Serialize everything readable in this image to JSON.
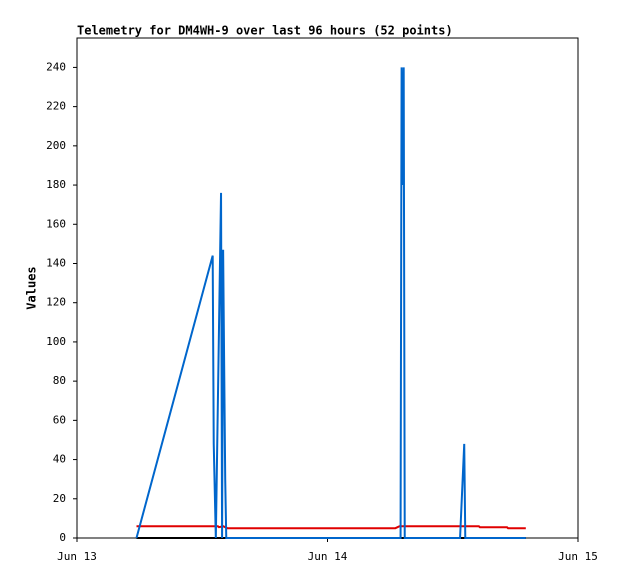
{
  "chart_data": {
    "type": "line",
    "title": "Telemetry for DM4WH-9 over last 96 hours (52 points)",
    "y_label": "Values",
    "xlim": [
      0,
      48
    ],
    "xticks": [
      {
        "value": 0,
        "label": "Jun 13"
      },
      {
        "value": 24,
        "label": "Jun 14"
      },
      {
        "value": 48,
        "label": "Jun 15"
      }
    ],
    "ylim": [
      0,
      255
    ],
    "yticks": [
      0,
      20,
      40,
      60,
      80,
      100,
      120,
      140,
      160,
      180,
      200,
      220,
      240
    ],
    "series": [
      {
        "color": "#e00000",
        "x": [
          5.7,
          13.5,
          13.6,
          14.0,
          14.4,
          30.5,
          30.9,
          38.5,
          38.6,
          41.2,
          41.3,
          43.0
        ],
        "values": [
          6,
          6,
          5.5,
          6,
          5,
          5,
          6,
          6,
          5.5,
          5.5,
          5,
          5
        ]
      },
      {
        "color": "#000000",
        "x": [
          5.7,
          43.0
        ],
        "values": [
          0,
          0
        ]
      },
      {
        "color": "#0066cc",
        "x": [
          5.7,
          13.0,
          13.1,
          13.3,
          13.8,
          13.9,
          14.0,
          14.1,
          14.2,
          14.3,
          31.0,
          31.1,
          31.2,
          31.3,
          31.4,
          36.7,
          37.1,
          37.2,
          43.0
        ],
        "values": [
          0,
          144,
          48,
          0,
          176,
          0,
          147,
          88,
          30,
          0,
          0,
          240,
          180,
          240,
          0,
          0,
          48,
          0,
          0
        ]
      }
    ]
  }
}
